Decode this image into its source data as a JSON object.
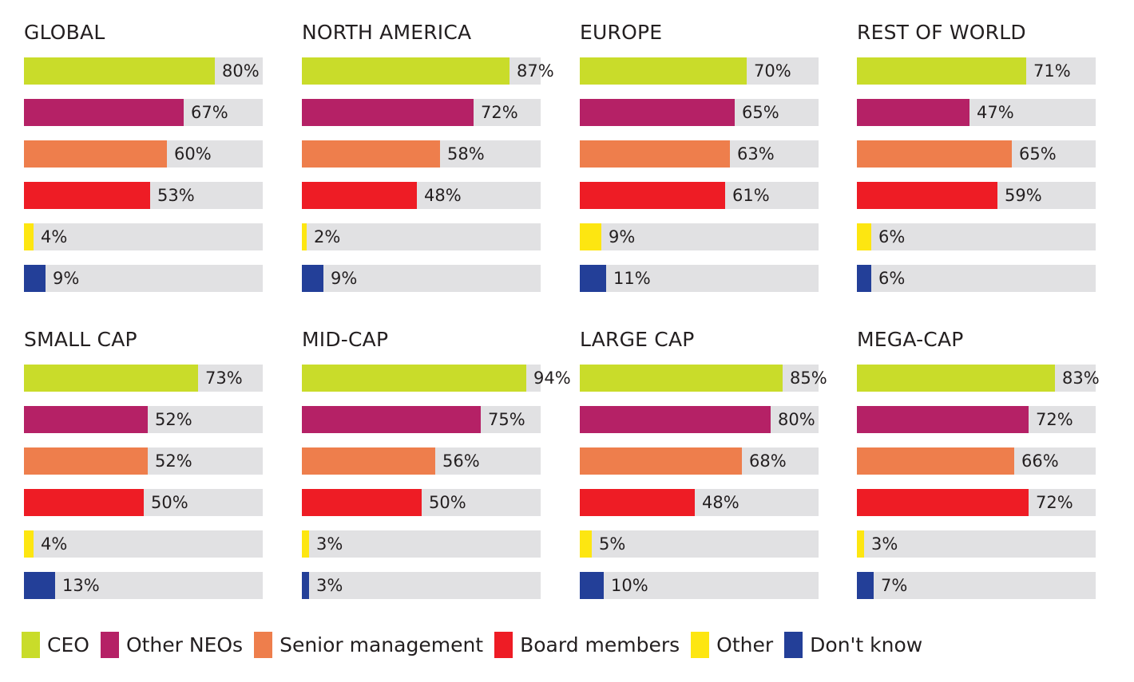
{
  "chart_data": {
    "type": "bar",
    "categories": [
      "CEO",
      "Other NEOs",
      "Senior management",
      "Board members",
      "Other",
      "Don't know"
    ],
    "colors": [
      "#c9dc2a",
      "#b52166",
      "#ee7e4c",
      "#ee1c25",
      "#fde611",
      "#233f98"
    ],
    "value_suffix": "%",
    "xlim": [
      0,
      100
    ],
    "grid": false,
    "legend_position": "bottom",
    "panels": [
      {
        "title": "GLOBAL",
        "values": [
          80,
          67,
          60,
          53,
          4,
          9
        ]
      },
      {
        "title": "NORTH AMERICA",
        "values": [
          87,
          72,
          58,
          48,
          2,
          9
        ]
      },
      {
        "title": "EUROPE",
        "values": [
          70,
          65,
          63,
          61,
          9,
          11
        ]
      },
      {
        "title": "REST OF WORLD",
        "values": [
          71,
          47,
          65,
          59,
          6,
          6
        ]
      },
      {
        "title": "SMALL CAP",
        "values": [
          73,
          52,
          52,
          50,
          4,
          13
        ]
      },
      {
        "title": "MID-CAP",
        "values": [
          94,
          75,
          56,
          50,
          3,
          3
        ]
      },
      {
        "title": "LARGE CAP",
        "values": [
          85,
          80,
          68,
          48,
          5,
          10
        ]
      },
      {
        "title": "MEGA-CAP",
        "values": [
          83,
          72,
          66,
          72,
          3,
          7
        ]
      }
    ]
  }
}
